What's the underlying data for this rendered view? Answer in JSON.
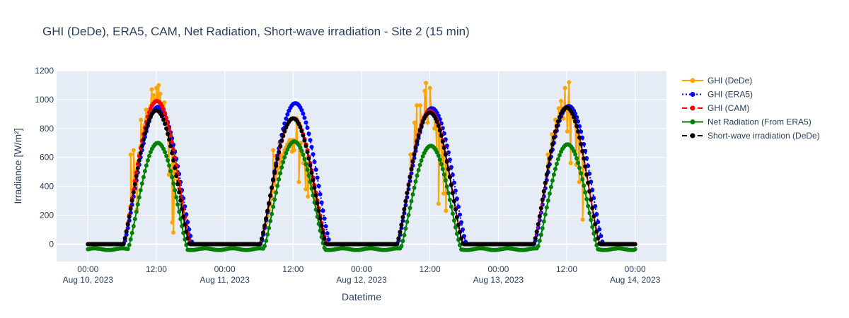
{
  "chart_data": {
    "type": "line",
    "title": "GHI (DeDe), ERA5, CAM, Net Radiation, Short-wave irradiation - Site 2 (15 min)",
    "xlabel": "Datetime",
    "ylabel": "Irradiance [W/m²]",
    "ylim": [
      -120,
      1200
    ],
    "xlim_hours": [
      -5.5,
      101.5
    ],
    "yticks": [
      0,
      200,
      400,
      600,
      800,
      1000,
      1200
    ],
    "xticks": [
      {
        "h": 0,
        "line1": "00:00",
        "line2": "Aug 10, 2023"
      },
      {
        "h": 12,
        "line1": "12:00",
        "line2": ""
      },
      {
        "h": 24,
        "line1": "00:00",
        "line2": "Aug 11, 2023"
      },
      {
        "h": 36,
        "line1": "12:00",
        "line2": ""
      },
      {
        "h": 48,
        "line1": "00:00",
        "line2": "Aug 12, 2023"
      },
      {
        "h": 60,
        "line1": "12:00",
        "line2": ""
      },
      {
        "h": 72,
        "line1": "00:00",
        "line2": "Aug 13, 2023"
      },
      {
        "h": 84,
        "line1": "12:00",
        "line2": ""
      },
      {
        "h": 96,
        "line1": "00:00",
        "line2": "Aug 14, 2023"
      }
    ],
    "grid": true,
    "legend_position": "right",
    "series": [
      {
        "name": "GHI (DeDe)",
        "color": "#ffa500",
        "dash": "solid",
        "days": [
          {
            "day": 0,
            "rise": 6.2,
            "set": 17.8,
            "peak": 1000,
            "noise": [
              [
                7.5,
                620
              ],
              [
                8.0,
                650
              ],
              [
                8.6,
                240
              ],
              [
                9.3,
                860
              ],
              [
                10.2,
                930
              ],
              [
                11.2,
                1070
              ],
              [
                11.5,
                1030
              ],
              [
                12.0,
                1080
              ],
              [
                12.4,
                1100
              ],
              [
                12.7,
                1040
              ],
              [
                13.1,
                900
              ],
              [
                13.4,
                980
              ],
              [
                14.2,
                480
              ],
              [
                14.8,
                150
              ],
              [
                15.0,
                80
              ]
            ]
          },
          {
            "day": 1,
            "rise": 6.2,
            "set": 17.8,
            "peak": 720,
            "noise": [
              [
                8.5,
                650
              ],
              [
                9.0,
                610
              ],
              [
                9.6,
                700
              ],
              [
                10.0,
                600
              ],
              [
                10.5,
                650
              ],
              [
                11.0,
                690
              ],
              [
                11.4,
                720
              ],
              [
                11.8,
                640
              ],
              [
                12.2,
                650
              ],
              [
                12.6,
                870
              ],
              [
                13.0,
                430
              ],
              [
                13.4,
                700
              ],
              [
                13.8,
                560
              ],
              [
                14.2,
                380
              ],
              [
                14.6,
                330
              ]
            ]
          },
          {
            "day": 2,
            "rise": 6.2,
            "set": 17.8,
            "peak": 910,
            "noise": [
              [
                8.6,
                620
              ],
              [
                9.3,
                840
              ],
              [
                9.7,
                960
              ],
              [
                10.3,
                960
              ],
              [
                11.1,
                1060
              ],
              [
                11.3,
                1115
              ],
              [
                11.6,
                840
              ],
              [
                12.0,
                1080
              ],
              [
                12.4,
                930
              ],
              [
                12.8,
                800
              ],
              [
                13.2,
                650
              ],
              [
                13.5,
                280
              ],
              [
                14.0,
                550
              ],
              [
                14.4,
                350
              ],
              [
                14.8,
                230
              ]
            ]
          },
          {
            "day": 3,
            "rise": 6.2,
            "set": 17.8,
            "peak": 930,
            "noise": [
              [
                8.7,
                620
              ],
              [
                9.4,
                760
              ],
              [
                10.0,
                860
              ],
              [
                10.6,
                940
              ],
              [
                11.0,
                990
              ],
              [
                11.4,
                870
              ],
              [
                11.7,
                1080
              ],
              [
                12.1,
                780
              ],
              [
                12.4,
                1120
              ],
              [
                12.7,
                560
              ],
              [
                13.0,
                930
              ],
              [
                13.3,
                900
              ],
              [
                13.7,
                550
              ],
              [
                14.2,
                430
              ],
              [
                14.8,
                170
              ]
            ]
          }
        ]
      },
      {
        "name": "GHI (ERA5)",
        "color": "#0000ff",
        "dash": "dot",
        "days": [
          {
            "day": 0,
            "rise": 6.3,
            "set": 18.4,
            "peak": 950
          },
          {
            "day": 1,
            "rise": 6.3,
            "set": 18.5,
            "peak": 975
          },
          {
            "day": 2,
            "rise": 6.3,
            "set": 18.4,
            "peak": 940
          },
          {
            "day": 3,
            "rise": 6.3,
            "set": 18.4,
            "peak": 955
          }
        ]
      },
      {
        "name": "GHI (CAM)",
        "color": "#ff0000",
        "dash": "dash",
        "days": [
          {
            "day": 0,
            "rise": 6.2,
            "set": 18.0,
            "peak": 990
          },
          {
            "day": 1,
            "rise": 6.2,
            "set": 17.9,
            "peak": 870
          },
          {
            "day": 2,
            "rise": 6.2,
            "set": 17.8,
            "peak": 920
          },
          {
            "day": 3,
            "rise": 6.2,
            "set": 17.8,
            "peak": 945
          }
        ]
      },
      {
        "name": "Net Radiation (From ERA5)",
        "color": "#008000",
        "dash": "solid",
        "night": -35,
        "days": [
          {
            "day": 0,
            "rise": 7.0,
            "set": 17.5,
            "peak": 700
          },
          {
            "day": 1,
            "rise": 6.8,
            "set": 17.6,
            "peak": 710
          },
          {
            "day": 2,
            "rise": 6.8,
            "set": 17.5,
            "peak": 680
          },
          {
            "day": 3,
            "rise": 6.8,
            "set": 17.5,
            "peak": 690
          }
        ]
      },
      {
        "name": "Short-wave irradiation (DeDe)",
        "color": "#000000",
        "dash": "dash",
        "days": [
          {
            "day": 0,
            "rise": 6.2,
            "set": 17.8,
            "peak": 925
          },
          {
            "day": 1,
            "rise": 6.2,
            "set": 17.8,
            "peak": 870
          },
          {
            "day": 2,
            "rise": 6.2,
            "set": 17.8,
            "peak": 910
          },
          {
            "day": 3,
            "rise": 6.2,
            "set": 17.8,
            "peak": 945
          }
        ]
      }
    ]
  }
}
